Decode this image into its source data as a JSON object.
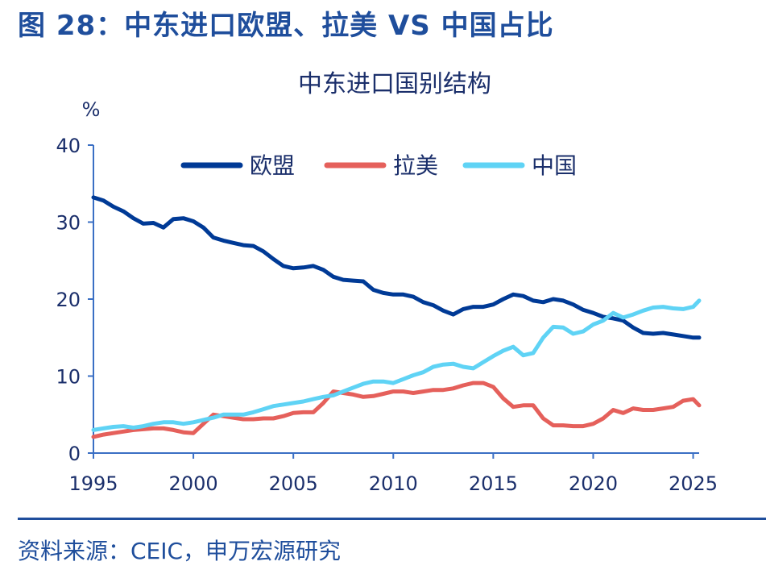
{
  "figure_title": "图 28：中东进口欧盟、拉美 VS 中国占比",
  "source": "资料来源：CEIC，申万宏源研究",
  "colors": {
    "accent": "#1f4e9c",
    "eu": "#003a96",
    "latam": "#e5605b",
    "china": "#5fd3f5",
    "text": "#1b2f6b"
  },
  "chart_data": {
    "type": "line",
    "title": "中东进口国别结构",
    "ylabel": "%",
    "xlabel": "",
    "xlim": [
      1995,
      2025.3
    ],
    "ylim": [
      0,
      40
    ],
    "x_ticks": [
      "1995",
      "2000",
      "2005",
      "2010",
      "2015",
      "2020",
      "2025"
    ],
    "y_ticks": [
      "0",
      "10",
      "20",
      "30",
      "40"
    ],
    "grid": false,
    "legend": "top-center",
    "series": [
      {
        "name": "欧盟",
        "color": "#003a96",
        "x": [
          1995,
          1995.5,
          1996,
          1996.5,
          1997,
          1997.5,
          1998,
          1998.5,
          1999,
          1999.5,
          2000,
          2000.5,
          2001,
          2001.5,
          2002,
          2002.5,
          2003,
          2003.5,
          2004,
          2004.5,
          2005,
          2005.5,
          2006,
          2006.5,
          2007,
          2007.5,
          2008,
          2008.5,
          2009,
          2009.5,
          2010,
          2010.5,
          2011,
          2011.5,
          2012,
          2012.5,
          2013,
          2013.5,
          2014,
          2014.5,
          2015,
          2015.5,
          2016,
          2016.5,
          2017,
          2017.5,
          2018,
          2018.5,
          2019,
          2019.5,
          2020,
          2020.5,
          2021,
          2021.5,
          2022,
          2022.5,
          2023,
          2023.5,
          2024,
          2024.5,
          2025,
          2025.3
        ],
        "values": [
          33.2,
          32.8,
          32.0,
          31.4,
          30.5,
          29.8,
          29.9,
          29.3,
          30.4,
          30.5,
          30.1,
          29.3,
          28.0,
          27.6,
          27.3,
          27.0,
          26.9,
          26.2,
          25.2,
          24.3,
          24.0,
          24.1,
          24.3,
          23.8,
          22.9,
          22.5,
          22.4,
          22.3,
          21.2,
          20.8,
          20.6,
          20.6,
          20.3,
          19.6,
          19.2,
          18.5,
          18.0,
          18.7,
          19.0,
          19.0,
          19.3,
          20.0,
          20.6,
          20.4,
          19.8,
          19.6,
          20.0,
          19.8,
          19.3,
          18.6,
          18.2,
          17.7,
          17.5,
          17.2,
          16.3,
          15.6,
          15.5,
          15.6,
          15.4,
          15.2,
          15.0,
          15.0
        ]
      },
      {
        "name": "拉美",
        "color": "#e5605b",
        "x": [
          1995,
          1995.5,
          1996,
          1996.5,
          1997,
          1997.5,
          1998,
          1998.5,
          1999,
          1999.5,
          2000,
          2000.5,
          2001,
          2001.5,
          2002,
          2002.5,
          2003,
          2003.5,
          2004,
          2004.5,
          2005,
          2005.5,
          2006,
          2006.5,
          2007,
          2007.5,
          2008,
          2008.5,
          2009,
          2009.5,
          2010,
          2010.5,
          2011,
          2011.5,
          2012,
          2012.5,
          2013,
          2013.5,
          2014,
          2014.5,
          2015,
          2015.5,
          2016,
          2016.5,
          2017,
          2017.5,
          2018,
          2018.5,
          2019,
          2019.5,
          2020,
          2020.5,
          2021,
          2021.5,
          2022,
          2022.5,
          2023,
          2023.5,
          2024,
          2024.5,
          2025,
          2025.3
        ],
        "values": [
          2.1,
          2.4,
          2.6,
          2.8,
          3.0,
          3.1,
          3.2,
          3.2,
          3.0,
          2.7,
          2.6,
          3.8,
          5.0,
          4.8,
          4.6,
          4.4,
          4.4,
          4.5,
          4.5,
          4.8,
          5.2,
          5.3,
          5.3,
          6.5,
          8.0,
          7.8,
          7.6,
          7.3,
          7.4,
          7.7,
          8.0,
          8.0,
          7.8,
          8.0,
          8.2,
          8.2,
          8.4,
          8.8,
          9.1,
          9.1,
          8.6,
          7.1,
          6.0,
          6.2,
          6.2,
          4.5,
          3.6,
          3.6,
          3.5,
          3.5,
          3.8,
          4.5,
          5.6,
          5.2,
          5.8,
          5.6,
          5.6,
          5.8,
          6.0,
          6.8,
          7.0,
          6.2
        ]
      },
      {
        "name": "中国",
        "color": "#5fd3f5",
        "x": [
          1995,
          1995.5,
          1996,
          1996.5,
          1997,
          1997.5,
          1998,
          1998.5,
          1999,
          1999.5,
          2000,
          2000.5,
          2001,
          2001.5,
          2002,
          2002.5,
          2003,
          2003.5,
          2004,
          2004.5,
          2005,
          2005.5,
          2006,
          2006.5,
          2007,
          2007.5,
          2008,
          2008.5,
          2009,
          2009.5,
          2010,
          2010.5,
          2011,
          2011.5,
          2012,
          2012.5,
          2013,
          2013.5,
          2014,
          2014.5,
          2015,
          2015.5,
          2016,
          2016.5,
          2017,
          2017.5,
          2018,
          2018.5,
          2019,
          2019.5,
          2020,
          2020.5,
          2021,
          2021.5,
          2022,
          2022.5,
          2023,
          2023.5,
          2024,
          2024.5,
          2025,
          2025.3
        ],
        "values": [
          3.0,
          3.2,
          3.4,
          3.5,
          3.3,
          3.5,
          3.8,
          4.0,
          4.0,
          3.8,
          4.0,
          4.3,
          4.6,
          5.0,
          5.0,
          5.0,
          5.3,
          5.7,
          6.1,
          6.3,
          6.5,
          6.7,
          7.0,
          7.3,
          7.5,
          8.0,
          8.5,
          9.0,
          9.3,
          9.3,
          9.1,
          9.6,
          10.1,
          10.5,
          11.2,
          11.5,
          11.6,
          11.2,
          11.0,
          11.8,
          12.6,
          13.3,
          13.8,
          12.7,
          13.0,
          15.0,
          16.4,
          16.3,
          15.5,
          15.8,
          16.7,
          17.2,
          18.2,
          17.6,
          18.0,
          18.5,
          18.9,
          19.0,
          18.8,
          18.7,
          19.0,
          19.8
        ]
      }
    ]
  }
}
